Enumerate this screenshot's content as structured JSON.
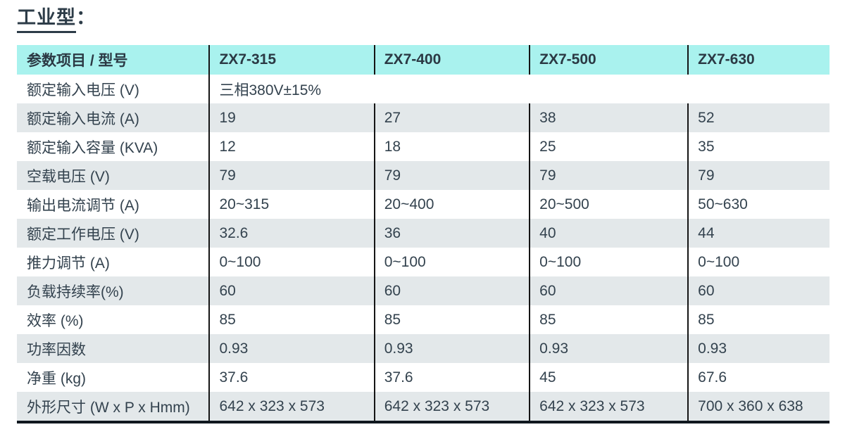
{
  "page_title": {
    "text": "工业型",
    "suffix": "："
  },
  "table": {
    "header": {
      "param_col": "参数项目 / 型号",
      "models": [
        "ZX7-315",
        "ZX7-400",
        "ZX7-500",
        "ZX7-630"
      ]
    },
    "spanning_row": {
      "label": "额定输入电压 (V)",
      "value": "三相380V±15%"
    },
    "rows": [
      {
        "label": "额定输入电流 (A)",
        "values": [
          "19",
          "27",
          "38",
          "52"
        ]
      },
      {
        "label": "额定输入容量 (KVA)",
        "values": [
          "12",
          "18",
          "25",
          "35"
        ]
      },
      {
        "label": "空载电压 (V)",
        "values": [
          "79",
          "79",
          "79",
          "79"
        ]
      },
      {
        "label": "输出电流调节 (A)",
        "values": [
          "20~315",
          "20~400",
          "20~500",
          "50~630"
        ]
      },
      {
        "label": "额定工作电压 (V)",
        "values": [
          "32.6",
          "36",
          "40",
          "44"
        ]
      },
      {
        "label": "推力调节 (A)",
        "values": [
          "0~100",
          "0~100",
          "0~100",
          "0~100"
        ]
      },
      {
        "label": "负载持续率(%)",
        "values": [
          "60",
          "60",
          "60",
          "60"
        ]
      },
      {
        "label": "效率 (%)",
        "values": [
          "85",
          "85",
          "85",
          "85"
        ]
      },
      {
        "label": "功率因数",
        "values": [
          "0.93",
          "0.93",
          "0.93",
          "0.93"
        ]
      },
      {
        "label": "净重 (kg)",
        "values": [
          "37.6",
          "37.6",
          "45",
          "67.6"
        ]
      },
      {
        "label": "外形尺寸 (W x P x Hmm)",
        "values": [
          "642 x 323 x 573",
          "642 x 323 x 573",
          "642 x 323 x 573",
          "700 x 360 x 638"
        ]
      }
    ]
  },
  "colors": {
    "header_bg": "#a9f2ee",
    "alt_row_bg": "#e3e8ea",
    "divider": "#151515",
    "text": "#33424e"
  }
}
